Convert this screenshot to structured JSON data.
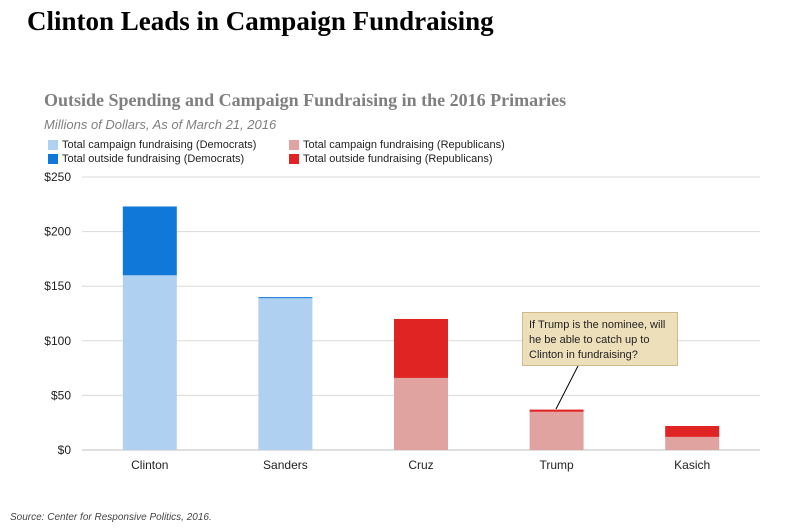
{
  "page": {
    "title": "Clinton Leads in Campaign Fundraising",
    "source": "Source: Center for Responsive Politics, 2016."
  },
  "chart_data": {
    "type": "bar",
    "stacked": true,
    "title": "Outside Spending and Campaign Fundraising in the 2016 Primaries",
    "subtitle": "Millions of Dollars, As of March 21, 2016",
    "xlabel": "",
    "ylabel": "",
    "ylim": [
      0,
      250
    ],
    "yticks": [
      0,
      50,
      100,
      150,
      200,
      250
    ],
    "ytick_labels": [
      "$0",
      "$50",
      "$100",
      "$150",
      "$200",
      "$250"
    ],
    "grid": true,
    "legend_position": "top-left",
    "categories": [
      "Clinton",
      "Sanders",
      "Cruz",
      "Trump",
      "Kasich"
    ],
    "series": [
      {
        "name": "Total campaign fundraising (Democrats)",
        "values": [
          160,
          139,
          null,
          null,
          null
        ],
        "color": "#afd0f1"
      },
      {
        "name": "Total outside fundraising (Democrats)",
        "values": [
          63,
          1,
          null,
          null,
          null
        ],
        "color": "#0f78d9"
      },
      {
        "name": "Total campaign fundraising (Republicans)",
        "values": [
          null,
          null,
          66,
          35,
          12
        ],
        "color": "#e1a3a0"
      },
      {
        "name": "Total outside fundraising (Republicans)",
        "values": [
          null,
          null,
          54,
          2,
          10
        ],
        "color": "#e02323"
      }
    ],
    "annotation": {
      "text": "If Trump is the nominee, will he be able to catch up to Clinton in fundraising?",
      "target": "Trump",
      "background": "#eedfbb"
    }
  }
}
